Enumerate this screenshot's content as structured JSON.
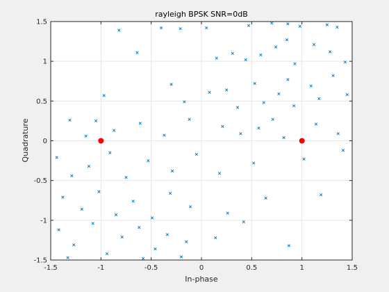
{
  "chart_data": {
    "type": "scatter",
    "title": "rayleigh BPSK SNR=0dB",
    "xlabel": "In-phase",
    "ylabel": "Quadrature",
    "xlim": [
      -1.5,
      1.5
    ],
    "ylim": [
      -1.5,
      1.5
    ],
    "xticks": [
      -1.5,
      -1,
      -0.5,
      0,
      0.5,
      1,
      1.5
    ],
    "xtick_labels": [
      "-1.5",
      "-1",
      "-0.5",
      "0",
      "0.5",
      "1",
      "1.5"
    ],
    "yticks": [
      -1.5,
      -1,
      -0.5,
      0,
      0.5,
      1,
      1.5
    ],
    "ytick_labels": [
      "-1.5",
      "-1",
      "-0.5",
      "0",
      "0.5",
      "1",
      "1.5"
    ],
    "grid": true,
    "series": [
      {
        "marker": "x",
        "color": "#0072bd",
        "points": [
          [
            -0.82,
            1.39
          ],
          [
            -0.4,
            1.42
          ],
          [
            -0.21,
            1.41
          ],
          [
            0.05,
            1.42
          ],
          [
            0.47,
            1.45
          ],
          [
            0.7,
            1.48
          ],
          [
            0.86,
            1.47
          ],
          [
            0.98,
            1.44
          ],
          [
            1.25,
            1.46
          ],
          [
            1.35,
            1.43
          ],
          [
            -0.64,
            1.11
          ],
          [
            0.15,
            1.04
          ],
          [
            0.31,
            1.1
          ],
          [
            0.44,
            1.02
          ],
          [
            0.59,
            1.08
          ],
          [
            0.74,
            1.18
          ],
          [
            0.85,
            1.27
          ],
          [
            0.93,
            0.97
          ],
          [
            1.12,
            1.21
          ],
          [
            1.28,
            1.12
          ],
          [
            1.43,
            0.99
          ],
          [
            -0.97,
            0.57
          ],
          [
            -0.3,
            0.71
          ],
          [
            -0.17,
            0.49
          ],
          [
            0.08,
            0.61
          ],
          [
            0.25,
            0.64
          ],
          [
            0.36,
            0.42
          ],
          [
            0.53,
            0.72
          ],
          [
            0.62,
            0.48
          ],
          [
            0.77,
            0.59
          ],
          [
            0.86,
            0.77
          ],
          [
            0.92,
            0.44
          ],
          [
            1.09,
            0.69
          ],
          [
            1.17,
            0.53
          ],
          [
            1.31,
            0.82
          ],
          [
            1.45,
            0.58
          ],
          [
            -1.31,
            0.26
          ],
          [
            -1.15,
            0.06
          ],
          [
            -1.05,
            0.25
          ],
          [
            -0.87,
            0.13
          ],
          [
            -0.61,
            0.22
          ],
          [
            -0.37,
            0.07
          ],
          [
            -0.12,
            0.27
          ],
          [
            0.21,
            0.18
          ],
          [
            0.39,
            0.09
          ],
          [
            0.57,
            0.16
          ],
          [
            0.71,
            0.27
          ],
          [
            0.82,
            0.04
          ],
          [
            1.14,
            0.21
          ],
          [
            1.36,
            0.09
          ],
          [
            -1.44,
            -0.21
          ],
          [
            -1.29,
            -0.44
          ],
          [
            -1.12,
            -0.32
          ],
          [
            -0.91,
            -0.15
          ],
          [
            -0.75,
            -0.46
          ],
          [
            -0.53,
            -0.25
          ],
          [
            -0.29,
            -0.38
          ],
          [
            -0.05,
            -0.17
          ],
          [
            0.18,
            -0.41
          ],
          [
            0.52,
            -0.28
          ],
          [
            1.02,
            -0.23
          ],
          [
            1.41,
            -0.12
          ],
          [
            -1.38,
            -0.71
          ],
          [
            -1.19,
            -0.86
          ],
          [
            -1.02,
            -0.64
          ],
          [
            -0.85,
            -0.93
          ],
          [
            -0.68,
            -0.76
          ],
          [
            -0.49,
            -0.97
          ],
          [
            -0.31,
            -0.66
          ],
          [
            -0.11,
            -0.83
          ],
          [
            0.26,
            -0.91
          ],
          [
            0.64,
            -0.72
          ],
          [
            1.19,
            -0.68
          ],
          [
            -1.42,
            -1.12
          ],
          [
            -1.27,
            -1.31
          ],
          [
            -1.08,
            -1.04
          ],
          [
            -0.94,
            -1.42
          ],
          [
            -0.79,
            -1.21
          ],
          [
            -0.62,
            -1.09
          ],
          [
            -0.46,
            -1.36
          ],
          [
            -0.34,
            -1.18
          ],
          [
            -0.2,
            -1.46
          ],
          [
            0.14,
            -1.22
          ],
          [
            0.42,
            -1.02
          ],
          [
            0.87,
            -1.32
          ],
          [
            -1.33,
            -1.47
          ],
          [
            -0.58,
            -1.48
          ],
          [
            -0.15,
            -1.27
          ]
        ]
      },
      {
        "marker": "dot",
        "color": "#ff0000",
        "points": [
          [
            -1,
            0
          ],
          [
            1,
            0
          ]
        ]
      }
    ]
  }
}
